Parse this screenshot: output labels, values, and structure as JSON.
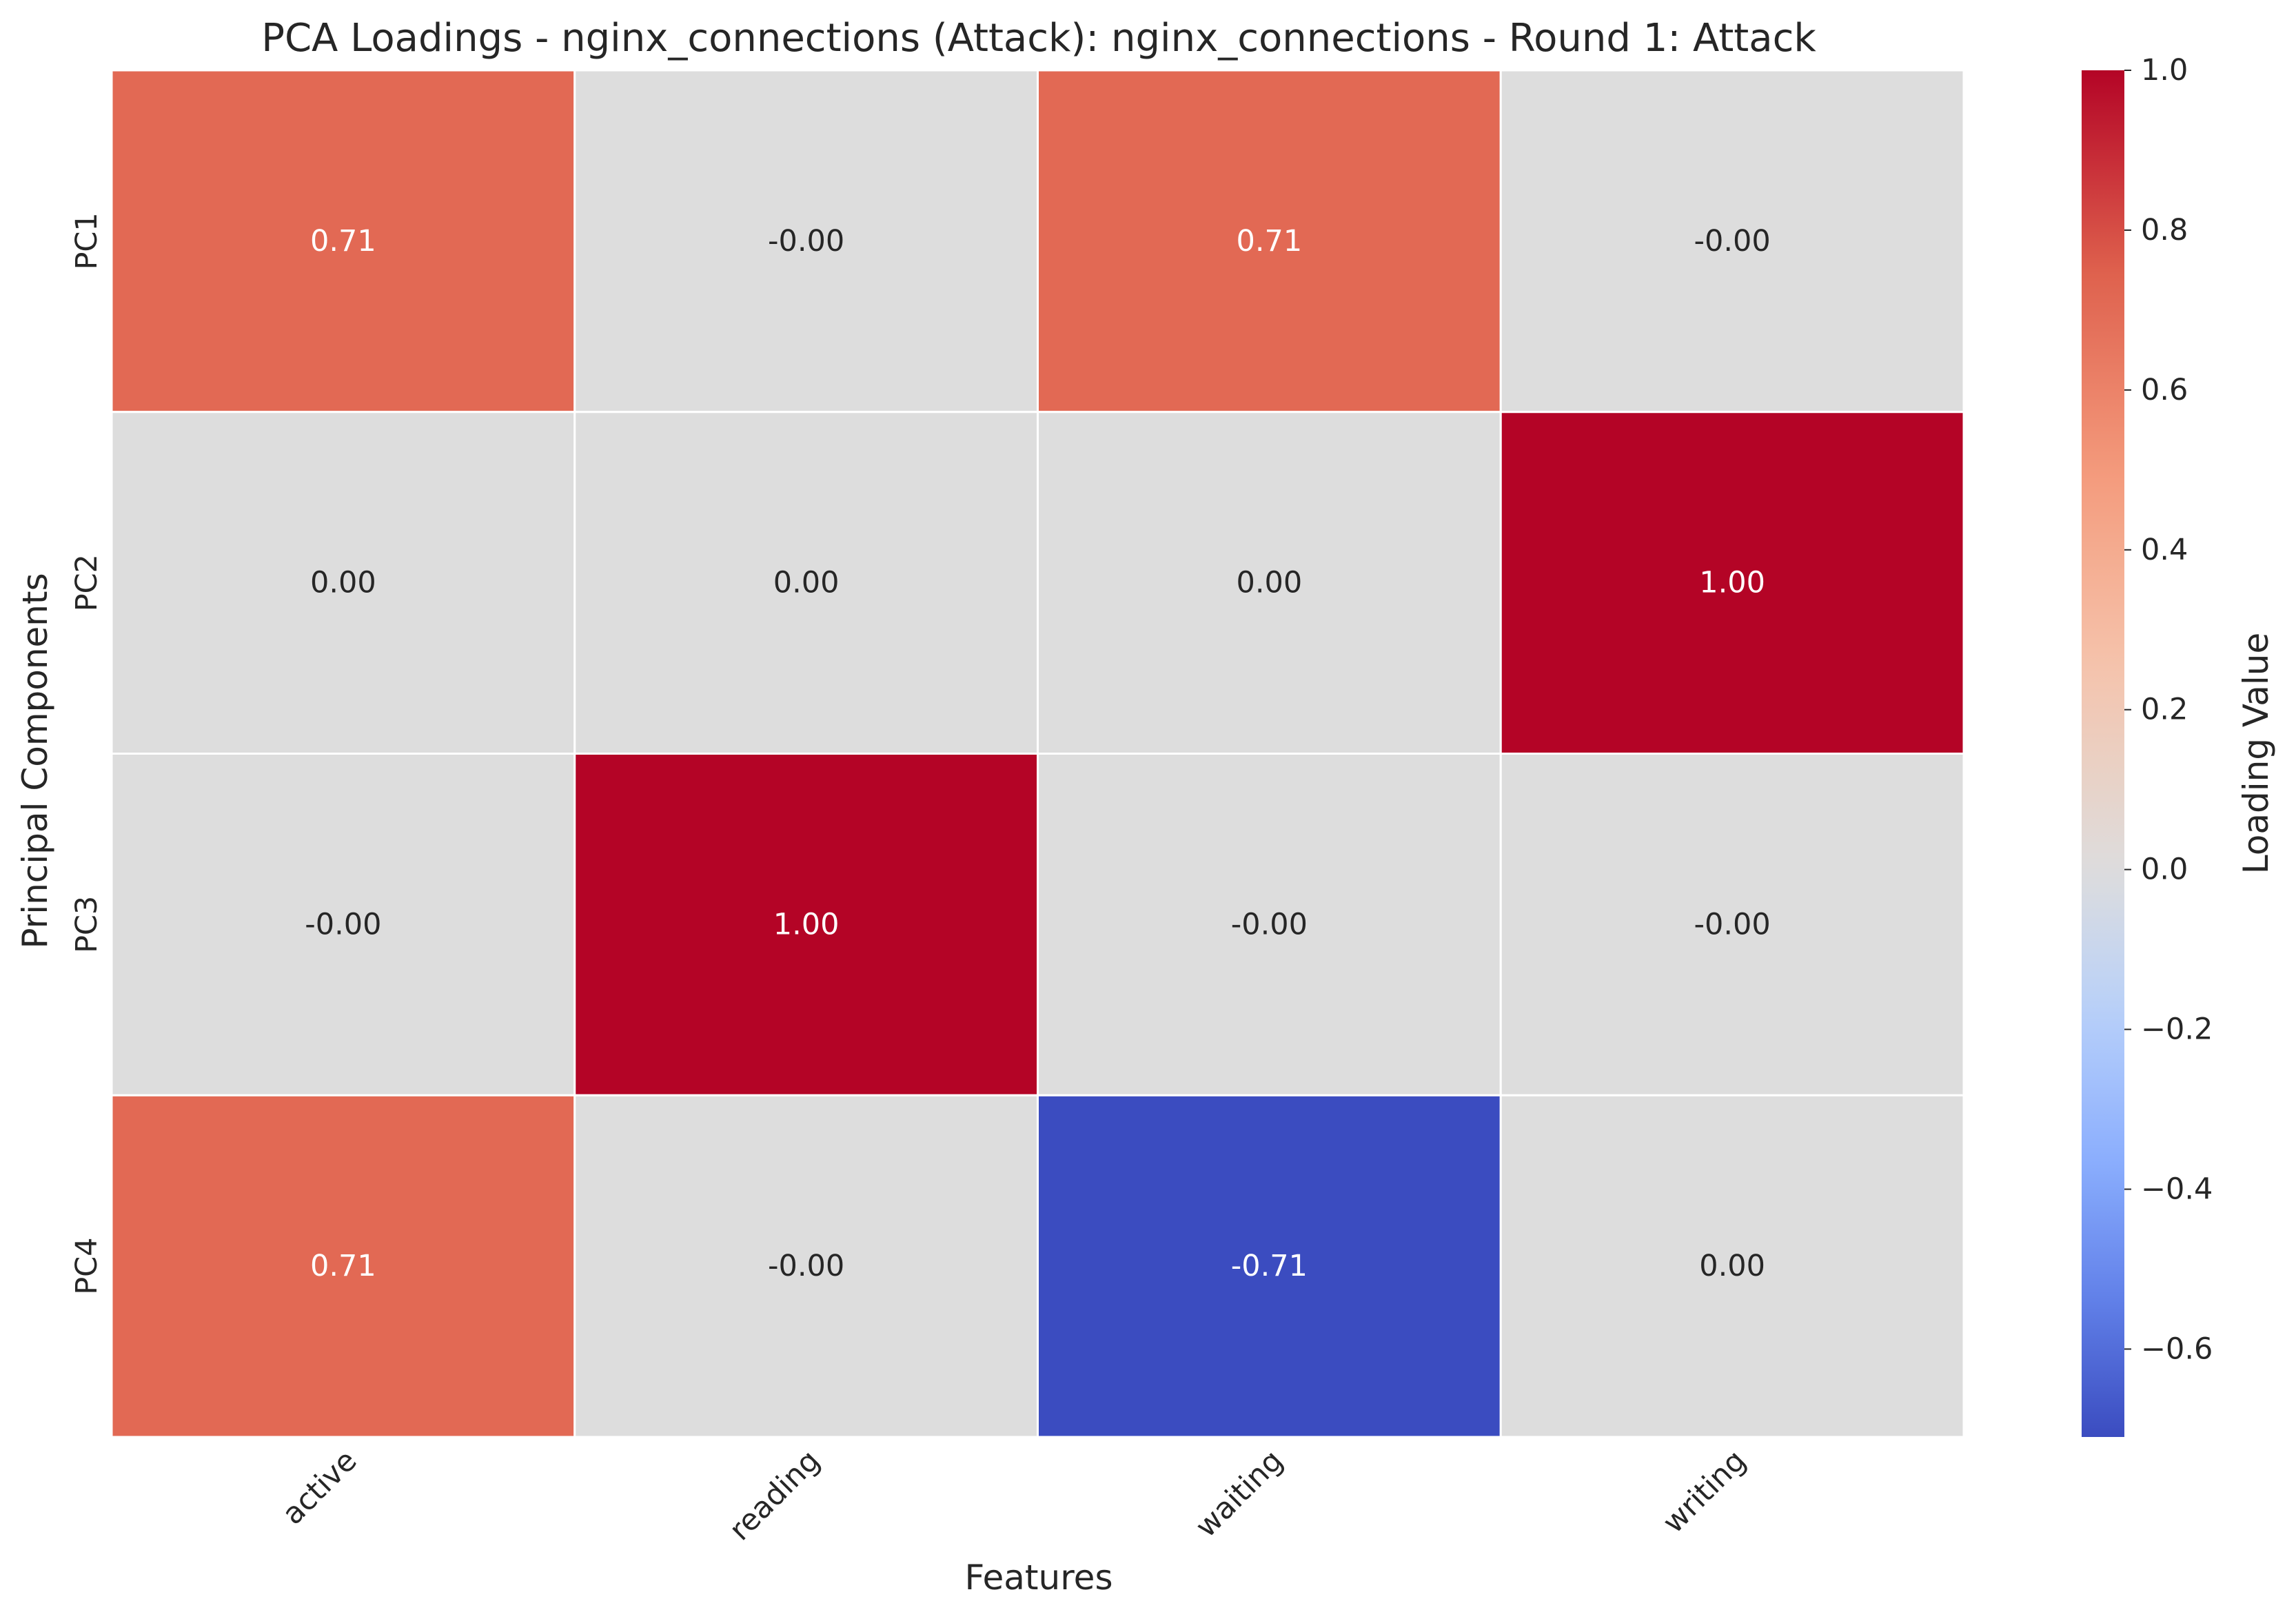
{
  "chart_data": {
    "type": "heatmap",
    "title": "PCA Loadings - nginx_connections (Attack): nginx_connections - Round 1: Attack",
    "xlabel": "Features",
    "ylabel": "Principal Components",
    "x_categories": [
      "active",
      "reading",
      "waiting",
      "writing"
    ],
    "y_categories": [
      "PC1",
      "PC2",
      "PC3",
      "PC4"
    ],
    "values": [
      [
        0.71,
        -0.0,
        0.71,
        -0.0
      ],
      [
        0.0,
        0.0,
        0.0,
        1.0
      ],
      [
        -0.0,
        1.0,
        -0.0,
        -0.0
      ],
      [
        0.71,
        -0.0,
        -0.71,
        0.0
      ]
    ],
    "cell_labels": [
      [
        "0.71",
        "-0.00",
        "0.71",
        "-0.00"
      ],
      [
        "0.00",
        "0.00",
        "0.00",
        "1.00"
      ],
      [
        "-0.00",
        "1.00",
        "-0.00",
        "-0.00"
      ],
      [
        "0.71",
        "-0.00",
        "-0.71",
        "0.00"
      ]
    ],
    "colormap": "coolwarm",
    "center": 0.0,
    "vmin": -0.71,
    "vmax": 1.0,
    "colorbar": {
      "label": "Loading Value",
      "ticks": [
        1.0,
        0.8,
        0.6,
        0.4,
        0.2,
        0.0,
        -0.2,
        -0.4,
        -0.6
      ],
      "tick_labels": [
        "1.0",
        "0.8",
        "0.6",
        "0.4",
        "0.2",
        "0.0",
        "−0.2",
        "−0.4",
        "−0.6"
      ]
    },
    "grid": false,
    "legend": "colorbar-right"
  }
}
